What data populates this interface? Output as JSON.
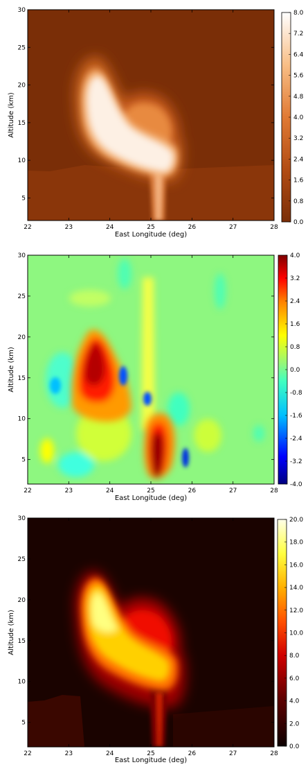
{
  "chart_data": [
    {
      "type": "heatmap",
      "xlabel": "East Longitude (deg)",
      "ylabel": "Altitude (km)",
      "xlim": [
        22,
        28
      ],
      "ylim": [
        2,
        30
      ],
      "xticks": [
        "22",
        "23",
        "24",
        "25",
        "26",
        "27",
        "28"
      ],
      "yticks": [
        "5",
        "10",
        "15",
        "20",
        "25",
        "30"
      ],
      "colorbar": {
        "ticks": [
          "0.0",
          "0.8",
          "1.6",
          "2.4",
          "3.2",
          "4.0",
          "4.8",
          "5.6",
          "6.4",
          "7.2",
          "8.0"
        ],
        "colors": [
          "#7a2e07",
          "#ffffff"
        ]
      },
      "background_color": "#7a2e07",
      "features": [
        {
          "name": "main-plume",
          "x": 24.1,
          "y": 16.0,
          "value": 8.0
        },
        {
          "name": "upper-right-lobe",
          "x": 25.1,
          "y": 16.0,
          "value": 4.5
        },
        {
          "name": "lower-core",
          "x": 25.2,
          "y": 10.2,
          "value": 6.5
        },
        {
          "name": "stem",
          "x": 25.2,
          "y": 5.0,
          "value": 3.0
        }
      ]
    },
    {
      "type": "heatmap",
      "xlabel": "East Longitude (deg)",
      "ylabel": "Altitude (km)",
      "xlim": [
        22,
        28
      ],
      "ylim": [
        2,
        30
      ],
      "xticks": [
        "22",
        "23",
        "24",
        "25",
        "26",
        "27",
        "28"
      ],
      "yticks": [
        "5",
        "10",
        "15",
        "20",
        "25",
        "30"
      ],
      "colorbar": {
        "ticks": [
          "4.0",
          "3.2",
          "2.4",
          "1.6",
          "0.8",
          "0.0",
          "-0.8",
          "-1.6",
          "-2.4",
          "-3.2",
          "-4.0"
        ],
        "colors": [
          "#00007f",
          "#0000ff",
          "#00bfff",
          "#7fff7f",
          "#ffff00",
          "#ff7f00",
          "#ff0000",
          "#7f0000"
        ]
      },
      "background_color": "#8ef780",
      "features": [
        {
          "name": "positive-upper-core",
          "x": 23.6,
          "y": 18.0,
          "value": 3.8
        },
        {
          "name": "positive-lower-core",
          "x": 25.1,
          "y": 7.0,
          "value": 4.0
        },
        {
          "name": "negative-left",
          "x": 23.0,
          "y": 14.5,
          "value": -0.8
        },
        {
          "name": "negative-mid",
          "x": 24.5,
          "y": 16.0,
          "value": -2.4
        },
        {
          "name": "negative-right",
          "x": 25.5,
          "y": 5.0,
          "value": -2.0
        }
      ]
    },
    {
      "type": "heatmap",
      "xlabel": "East Longitude (deg)",
      "ylabel": "Altitude (km)",
      "xlim": [
        22,
        28
      ],
      "ylim": [
        2,
        30
      ],
      "xticks": [
        "22",
        "23",
        "24",
        "25",
        "26",
        "27",
        "28"
      ],
      "yticks": [
        "5",
        "10",
        "15",
        "20",
        "25",
        "30"
      ],
      "colorbar": {
        "ticks": [
          "0.0",
          "2.0",
          "4.0",
          "6.0",
          "8.0",
          "10.0",
          "12.0",
          "14.0",
          "16.0",
          "18.0",
          "20.0"
        ],
        "colors": [
          "#0d0000",
          "#9c0000",
          "#ff4000",
          "#ffb000",
          "#ffff40",
          "#ffffe8"
        ]
      },
      "background_color": "#1a0300",
      "features": [
        {
          "name": "main-plume",
          "x": 24.0,
          "y": 16.5,
          "value": 17.0
        },
        {
          "name": "upper-right-lobe",
          "x": 25.0,
          "y": 16.5,
          "value": 8.0
        },
        {
          "name": "lower-core",
          "x": 25.2,
          "y": 10.5,
          "value": 13.0
        }
      ]
    }
  ]
}
